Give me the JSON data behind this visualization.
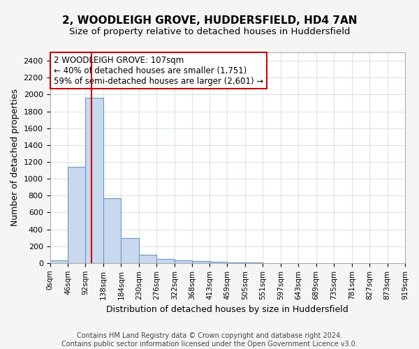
{
  "title": "2, WOODLEIGH GROVE, HUDDERSFIELD, HD4 7AN",
  "subtitle": "Size of property relative to detached houses in Huddersfield",
  "xlabel": "Distribution of detached houses by size in Huddersfield",
  "ylabel": "Number of detached properties",
  "bin_edges": [
    0,
    46,
    92,
    138,
    184,
    230,
    276,
    322,
    368,
    413,
    459,
    505,
    551,
    597,
    643,
    689,
    735,
    781,
    827,
    873,
    919
  ],
  "bar_heights": [
    35,
    1140,
    1960,
    770,
    295,
    100,
    50,
    35,
    20,
    12,
    8,
    5,
    0,
    0,
    0,
    0,
    0,
    0,
    0,
    0
  ],
  "bar_color": "#c8d8ee",
  "bar_edgecolor": "#6699cc",
  "property_size": 107,
  "annotation_line1": "2 WOODLEIGH GROVE: 107sqm",
  "annotation_line2": "← 40% of detached houses are smaller (1,751)",
  "annotation_line3": "59% of semi-detached houses are larger (2,601) →",
  "annotation_box_facecolor": "#ffffff",
  "annotation_box_edgecolor": "#cc0000",
  "vline_color": "#cc0000",
  "ylim": [
    0,
    2500
  ],
  "yticks": [
    0,
    200,
    400,
    600,
    800,
    1000,
    1200,
    1400,
    1600,
    1800,
    2000,
    2200,
    2400
  ],
  "footer_text": "Contains HM Land Registry data © Crown copyright and database right 2024.\nContains public sector information licensed under the Open Government Licence v3.0.",
  "background_color": "#f5f5f5",
  "plot_background_color": "#ffffff",
  "grid_color": "#c8d4e0"
}
